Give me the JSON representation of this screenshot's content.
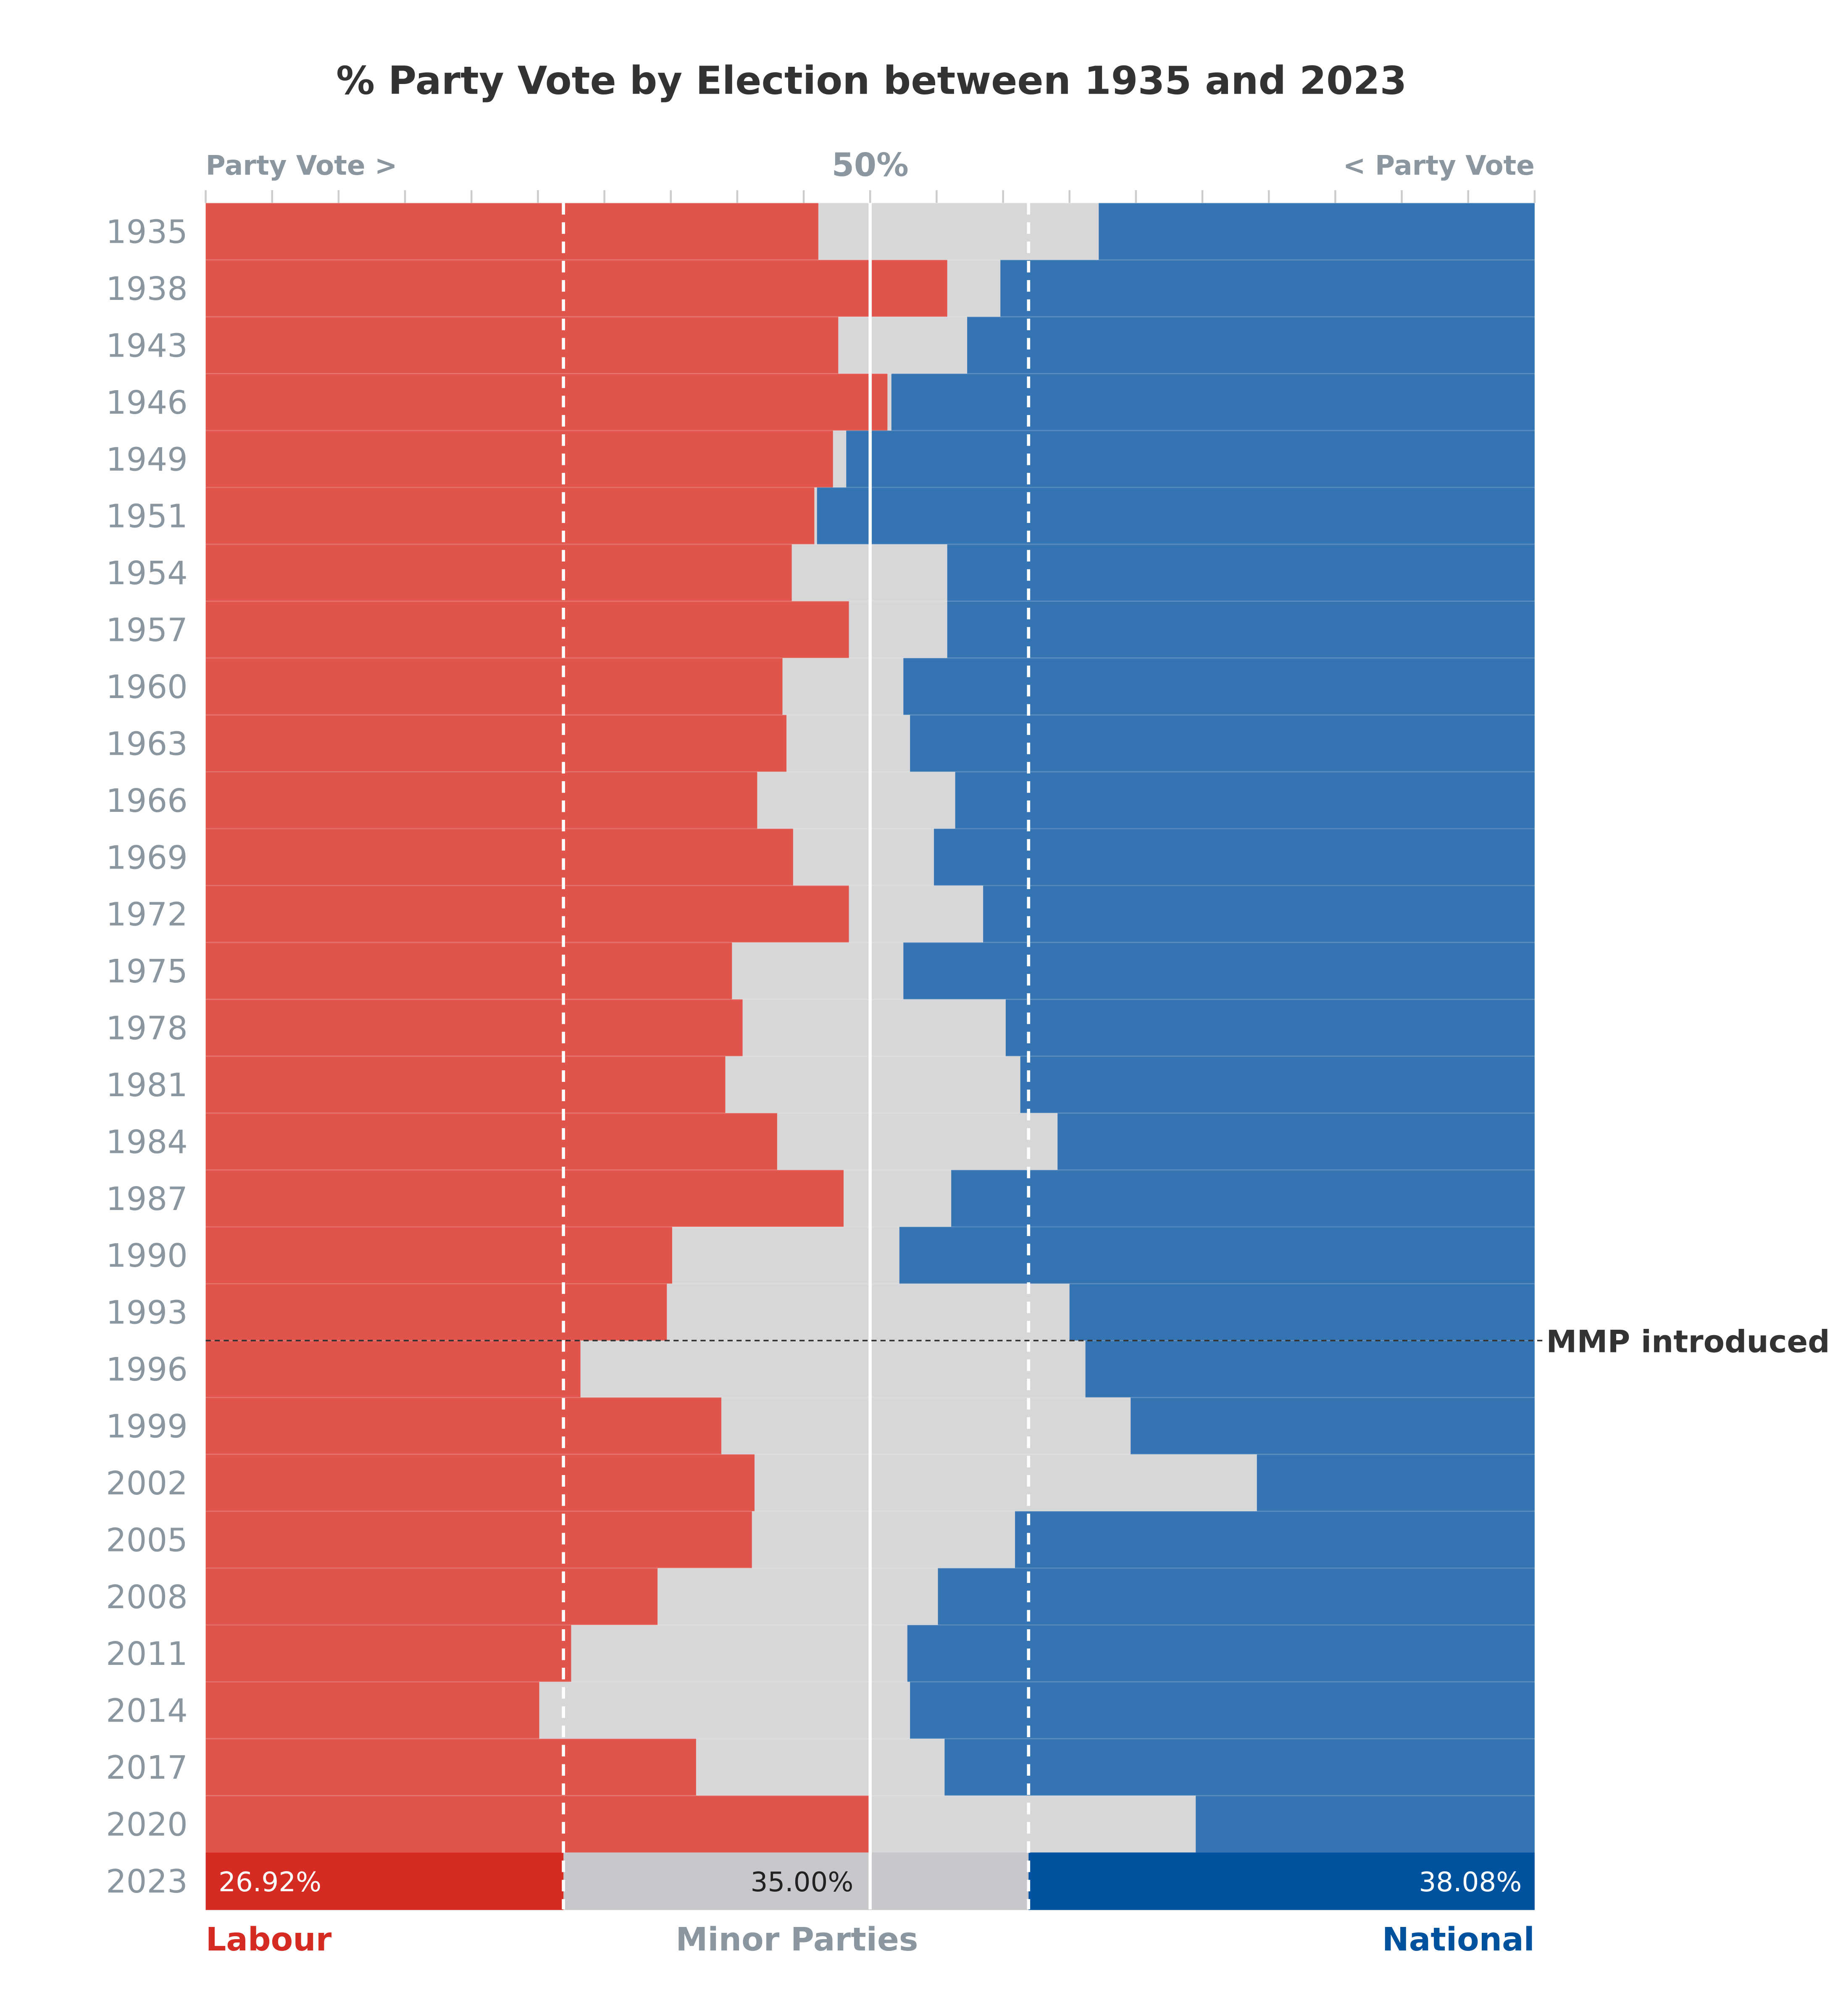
{
  "chart_data": {
    "type": "bar",
    "title": "% Party Vote by Election between 1935 and 2023",
    "top_left_label": "Party Vote >",
    "top_center_label": "50%",
    "top_right_label": "< Party Vote",
    "annotation": "MMP introduced",
    "annotation_between": [
      "1993",
      "1996"
    ],
    "xlim": [
      0,
      100
    ],
    "categories": [
      "1935",
      "1938",
      "1943",
      "1946",
      "1949",
      "1951",
      "1954",
      "1957",
      "1960",
      "1963",
      "1966",
      "1969",
      "1972",
      "1975",
      "1978",
      "1981",
      "1984",
      "1987",
      "1990",
      "1993",
      "1996",
      "1999",
      "2002",
      "2005",
      "2008",
      "2011",
      "2014",
      "2017",
      "2020",
      "2023"
    ],
    "series": [
      {
        "name": "Labour",
        "side": "left",
        "color": "#e0544c",
        "highlight_color": "#d62b22",
        "values": [
          46.1,
          55.8,
          47.6,
          51.3,
          47.2,
          45.8,
          44.1,
          48.4,
          43.4,
          43.7,
          41.5,
          44.2,
          48.4,
          39.6,
          40.4,
          39.1,
          43.0,
          48.0,
          35.1,
          34.7,
          28.2,
          38.8,
          41.3,
          41.1,
          34.0,
          27.5,
          25.1,
          36.9,
          50.0,
          26.92
        ]
      },
      {
        "name": "Minor Parties",
        "side": "middle",
        "color": "#d7d7d9",
        "highlight_color": "#c8c8cc"
      },
      {
        "name": "National",
        "side": "right",
        "color": "#3574b2",
        "highlight_color": "#00529f",
        "values": [
          32.8,
          40.2,
          42.7,
          48.4,
          51.8,
          54.0,
          44.2,
          44.2,
          47.5,
          47.0,
          43.6,
          45.2,
          41.5,
          47.5,
          39.8,
          38.7,
          35.9,
          43.9,
          47.8,
          35.0,
          33.8,
          30.4,
          20.9,
          39.1,
          44.9,
          47.2,
          47.0,
          44.4,
          25.5,
          38.08
        ]
      }
    ],
    "highlight_year": "2023",
    "highlight_labels": {
      "labour": "26.92%",
      "minor": "35.00%",
      "national": "38.08%"
    },
    "reference_lines": {
      "labour_2023": 26.92,
      "national_2023": 38.08
    },
    "legend": {
      "labour": "Labour",
      "minor": "Minor Parties",
      "national": "National"
    },
    "label_colors": {
      "axis": "#8a96a0",
      "labour": "#d62b22",
      "national": "#00529f",
      "title": "#333333"
    }
  }
}
